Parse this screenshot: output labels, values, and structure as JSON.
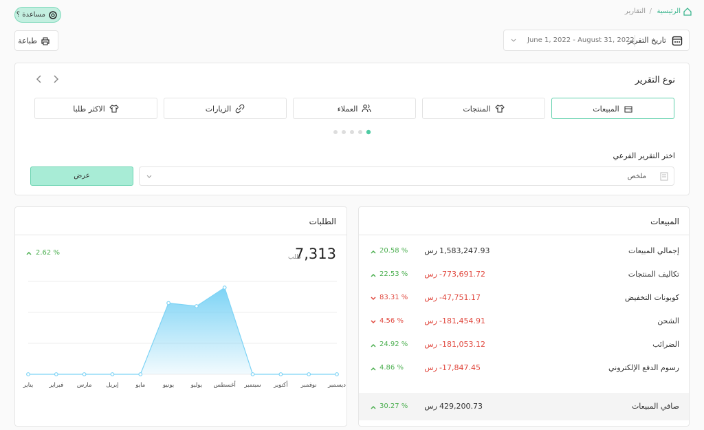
{
  "breadcrumb": {
    "home": "الرئيسية",
    "separator": "/",
    "current": "التقارير"
  },
  "help": "مساعدة ؟",
  "report_date": {
    "label": "تاريخ التقرير",
    "range": "June 1, 2022 - August 31, 2022"
  },
  "print": "طباعة",
  "report_type": {
    "title": "نوع التقرير",
    "tabs": [
      "المبيعات",
      "المنتجات",
      "العملاء",
      "الزيارات",
      "الاكثر طلبا"
    ],
    "active": 0,
    "subreport_label": "اختر التقرير الفرعي",
    "subreport_value": "ملخص",
    "show_button": "عرض"
  },
  "sales": {
    "title": "المبيعات",
    "rows": [
      {
        "name": "إجمالي المبيعات",
        "amount": "1,583,247.93",
        "currency": "رس",
        "change": "20.58 %",
        "trend": "up"
      },
      {
        "name": "تكاليف المنتجات",
        "amount": "-773,691.72",
        "currency": "رس",
        "change": "22.53 %",
        "trend": "up"
      },
      {
        "name": "كوبونات التخفيض",
        "amount": "-47,751.17",
        "currency": "رس",
        "change": "83.31 %",
        "trend": "down"
      },
      {
        "name": "الشحن",
        "amount": "-181,454.91",
        "currency": "رس",
        "change": "4.56 %",
        "trend": "down"
      },
      {
        "name": "الضرائب",
        "amount": "-181,053.12",
        "currency": "رس",
        "change": "24.92 %",
        "trend": "up"
      },
      {
        "name": "رسوم الدفع الإلكتروني",
        "amount": "-17,847.45",
        "currency": "رس",
        "change": "4.86 %",
        "trend": "up"
      }
    ],
    "net": {
      "name": "صافي المبيعات",
      "amount": "429,200.73",
      "currency": "رس",
      "change": "30.27 %",
      "trend": "up"
    }
  },
  "orders": {
    "title": "الطلبات",
    "total": "7,313",
    "unit": "طلب",
    "change": "2.62 %",
    "trend": "up",
    "chart_data": {
      "type": "area",
      "categories": [
        "يناير",
        "فبراير",
        "مارس",
        "إبريل",
        "مايو",
        "يونيو",
        "يوليو",
        "أغسطس",
        "سبتمبر",
        "أكتوبر",
        "نوفمبر",
        "ديسمبر"
      ],
      "values": [
        0,
        0,
        0,
        0,
        0,
        2.3,
        2.2,
        2.8,
        0,
        0,
        0,
        0
      ],
      "color": "#7dd3f5",
      "ylim": [
        0,
        3
      ],
      "yticks": [
        0,
        1,
        2,
        3
      ],
      "grid": true
    }
  }
}
